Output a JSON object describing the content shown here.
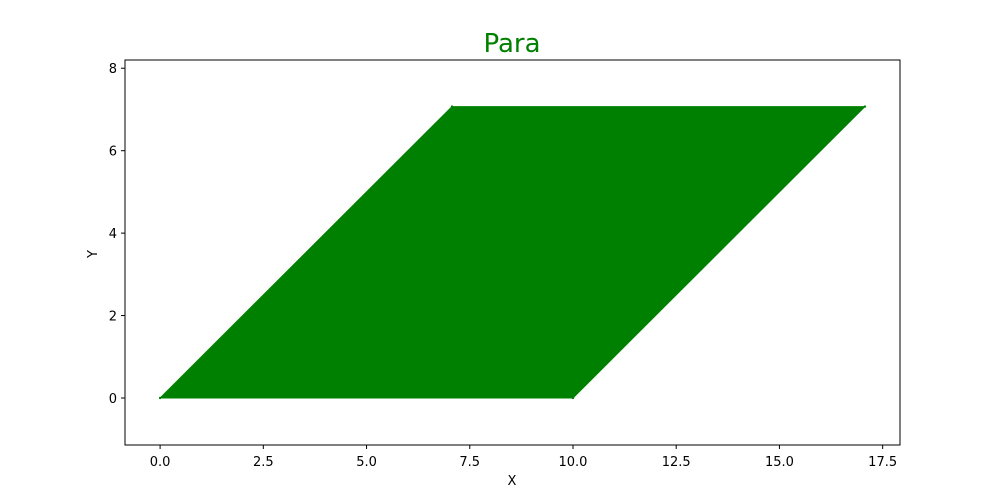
{
  "chart_data": {
    "type": "area",
    "title": "Para",
    "xlabel": "X",
    "ylabel": "Y",
    "xlim": [
      -0.85,
      17.92
    ],
    "ylim": [
      -1.14,
      8.2
    ],
    "grid": false,
    "legend": "none",
    "x_ticks": [
      0,
      2.5,
      5,
      7.5,
      10,
      12.5,
      15,
      17.5
    ],
    "x_tick_labels": [
      "0.0",
      "2.5",
      "5.0",
      "7.5",
      "10.0",
      "12.5",
      "15.0",
      "17.5"
    ],
    "y_ticks": [
      0,
      2,
      4,
      6,
      8
    ],
    "y_tick_labels": [
      "0",
      "2",
      "4",
      "6",
      "8"
    ],
    "series": [
      {
        "shape": "parallelogram",
        "color": "#008000",
        "points": [
          {
            "x": 0,
            "y": 0
          },
          {
            "x": 10,
            "y": 0
          },
          {
            "x": 17.07,
            "y": 7.07
          },
          {
            "x": 7.07,
            "y": 7.07
          }
        ]
      }
    ],
    "colors": {
      "title": "#008000",
      "fill": "#008000",
      "axes": "#000000"
    }
  }
}
